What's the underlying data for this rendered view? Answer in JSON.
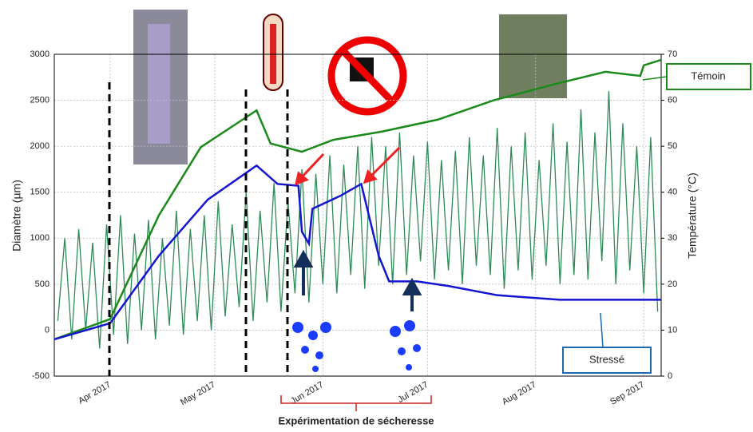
{
  "chart_data": {
    "type": "line",
    "ylabel": "Diamètre (µm)",
    "y2label": "Température (°C)",
    "annotation": "Expérimentation de sécheresse",
    "xlim": [
      75,
      249
    ],
    "xticks": [
      {
        "value": 91,
        "label": "Apr 2017"
      },
      {
        "value": 121,
        "label": "May 2017"
      },
      {
        "value": 152,
        "label": "Jun 2017"
      },
      {
        "value": 182,
        "label": "Jul 2017"
      },
      {
        "value": 213,
        "label": "Aug 2017"
      },
      {
        "value": 244,
        "label": "Sep 2017"
      }
    ],
    "ylim": [
      -500,
      3000
    ],
    "yticks": [
      -500,
      0,
      500,
      1000,
      1500,
      2000,
      2500,
      3000
    ],
    "y2lim": [
      0,
      70
    ],
    "y2ticks": [
      0,
      10,
      20,
      30,
      40,
      50,
      60,
      70
    ],
    "grid": true,
    "series": [
      {
        "name": "Témoin",
        "color": "#1a8a1a",
        "x": [
          75,
          91,
          105,
          117,
          129,
          133,
          137,
          146,
          155,
          169,
          185,
          201,
          219,
          233,
          243,
          244,
          249
        ],
        "values": [
          -100,
          120,
          1250,
          1990,
          2290,
          2390,
          2030,
          1940,
          2070,
          2160,
          2290,
          2500,
          2680,
          2810,
          2765,
          2880,
          2940
        ]
      },
      {
        "name": "Stressé",
        "color": "#1414d2",
        "x": [
          75,
          91,
          105,
          119,
          133,
          139,
          145,
          146,
          148,
          149,
          157,
          163,
          168,
          171,
          179,
          188,
          202,
          220,
          249
        ],
        "values": [
          -100,
          75,
          810,
          1420,
          1790,
          1590,
          1570,
          1070,
          940,
          1320,
          1460,
          1590,
          810,
          530,
          530,
          480,
          380,
          330,
          330
        ]
      },
      {
        "color": "#2e8b57",
        "axis": "y2",
        "x": [
          76,
          78,
          80,
          82,
          84,
          86,
          88,
          90,
          92,
          94,
          96,
          98,
          100,
          102,
          104,
          106,
          108,
          110,
          112,
          114,
          116,
          118,
          120,
          122,
          124,
          126,
          128,
          130,
          132,
          134,
          136,
          138,
          140,
          142,
          144,
          146,
          148,
          150,
          152,
          154,
          156,
          158,
          160,
          162,
          164,
          166,
          168,
          170,
          172,
          174,
          176,
          178,
          180,
          182,
          184,
          186,
          188,
          190,
          192,
          194,
          196,
          198,
          200,
          202,
          204,
          206,
          208,
          210,
          212,
          214,
          216,
          218,
          220,
          222,
          224,
          226,
          228,
          230,
          232,
          234,
          236,
          238,
          240,
          242,
          244,
          246,
          248
        ],
        "values": [
          12,
          30,
          8,
          32,
          10,
          29,
          6,
          33,
          9,
          35,
          7,
          31,
          10,
          34,
          8,
          30,
          11,
          36,
          9,
          32,
          12,
          35,
          10,
          38,
          13,
          33,
          15,
          40,
          12,
          36,
          16,
          42,
          14,
          38,
          18,
          45,
          16,
          44,
          20,
          48,
          18,
          46,
          22,
          50,
          19,
          52,
          24,
          50,
          20,
          53,
          22,
          48,
          25,
          51,
          21,
          47,
          23,
          49,
          20,
          52,
          24,
          48,
          22,
          54,
          19,
          50,
          23,
          53,
          21,
          47,
          24,
          55,
          20,
          51,
          22,
          58,
          21,
          53,
          25,
          62,
          20,
          55,
          23,
          50,
          18,
          52,
          14
        ]
      }
    ],
    "labels": [
      "Témoin",
      "Stressé"
    ]
  }
}
